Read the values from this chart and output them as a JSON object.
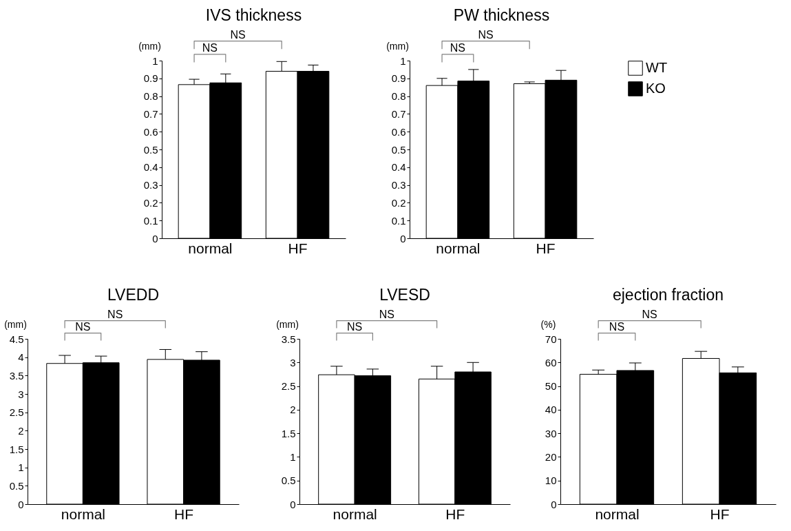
{
  "chart_data": [
    {
      "type": "bar",
      "title": "IVS thickness",
      "ylabel": "(mm)",
      "categories": [
        "normal",
        "HF"
      ],
      "series": [
        {
          "color": "#ffffff",
          "values": [
            0.865,
            0.94
          ],
          "errors": [
            0.03,
            0.055
          ]
        },
        {
          "color": "#000000",
          "values": [
            0.875,
            0.94
          ],
          "errors": [
            0.05,
            0.035
          ]
        }
      ],
      "ylim": [
        0,
        1
      ],
      "yticks": [
        0,
        0.1,
        0.2,
        0.3,
        0.4,
        0.5,
        0.6,
        0.7,
        0.8,
        0.9,
        1
      ],
      "annotations": [
        "NS",
        "NS"
      ]
    },
    {
      "type": "bar",
      "title": "PW thickness",
      "ylabel": "(mm)",
      "categories": [
        "normal",
        "HF"
      ],
      "series": [
        {
          "name": "WT",
          "color": "#ffffff",
          "values": [
            0.86,
            0.87
          ],
          "errors": [
            0.04,
            0.01
          ]
        },
        {
          "name": "KO",
          "color": "#000000",
          "values": [
            0.885,
            0.89
          ],
          "errors": [
            0.065,
            0.055
          ]
        }
      ],
      "ylim": [
        0,
        1
      ],
      "yticks": [
        0,
        0.1,
        0.2,
        0.3,
        0.4,
        0.5,
        0.6,
        0.7,
        0.8,
        0.9,
        1
      ],
      "annotations": [
        "NS",
        "NS"
      ],
      "legend": "right"
    },
    {
      "type": "bar",
      "title": "LVEDD",
      "ylabel": "(mm)",
      "categories": [
        "normal",
        "HF"
      ],
      "series": [
        {
          "color": "#ffffff",
          "values": [
            3.83,
            3.94
          ],
          "errors": [
            0.22,
            0.27
          ]
        },
        {
          "color": "#000000",
          "values": [
            3.85,
            3.92
          ],
          "errors": [
            0.18,
            0.23
          ]
        }
      ],
      "ylim": [
        0,
        4.5
      ],
      "yticks": [
        0,
        0.5,
        1,
        1.5,
        2,
        2.5,
        3,
        3.5,
        4,
        4.5
      ],
      "annotations": [
        "NS",
        "NS"
      ]
    },
    {
      "type": "bar",
      "title": "LVESD",
      "ylabel": "(mm)",
      "categories": [
        "normal",
        "HF"
      ],
      "series": [
        {
          "color": "#ffffff",
          "values": [
            2.74,
            2.65
          ],
          "errors": [
            0.18,
            0.27
          ]
        },
        {
          "color": "#000000",
          "values": [
            2.72,
            2.8
          ],
          "errors": [
            0.14,
            0.2
          ]
        }
      ],
      "ylim": [
        0,
        3.5
      ],
      "yticks": [
        0,
        0.5,
        1,
        1.5,
        2,
        2.5,
        3,
        3.5
      ],
      "annotations": [
        "NS",
        "NS"
      ]
    },
    {
      "type": "bar",
      "title": "ejection fraction",
      "ylabel": "(%)",
      "categories": [
        "normal",
        "HF"
      ],
      "series": [
        {
          "color": "#ffffff",
          "values": [
            55,
            61.7
          ],
          "errors": [
            1.8,
            3
          ]
        },
        {
          "color": "#000000",
          "values": [
            56.6,
            55.6
          ],
          "errors": [
            3.2,
            2.5
          ]
        }
      ],
      "ylim": [
        0,
        70
      ],
      "yticks": [
        0,
        10,
        20,
        30,
        40,
        50,
        60,
        70
      ],
      "annotations": [
        "NS",
        "NS"
      ]
    }
  ]
}
